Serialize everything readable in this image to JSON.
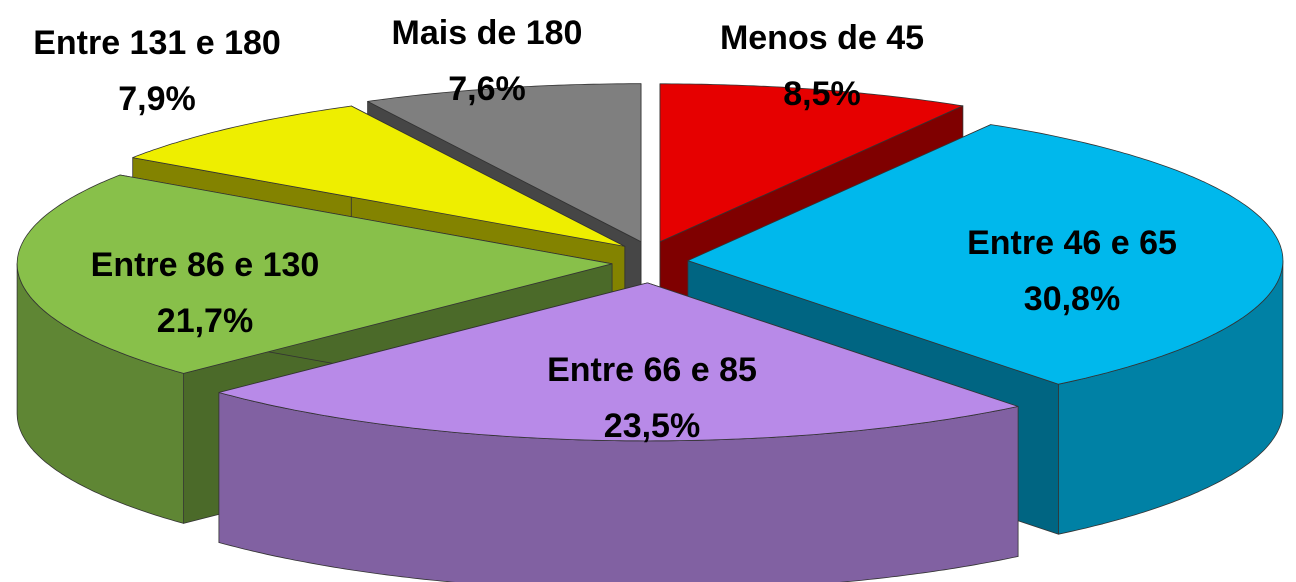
{
  "chart_data": {
    "type": "pie",
    "style": "3d-exploded",
    "categories": [
      "Menos de 45",
      "Entre 46 e 65",
      "Entre 66 e 85",
      "Entre 86 e 130",
      "Entre 131 e 180",
      "Mais de 180"
    ],
    "values": [
      8.5,
      30.8,
      23.5,
      21.7,
      7.9,
      7.6
    ],
    "value_labels": [
      "8,5%",
      "30,8%",
      "23,5%",
      "21,7%",
      "7,9%",
      "7,6%"
    ],
    "colors": [
      "#e60000",
      "#00b8ec",
      "#b88ae8",
      "#88c04a",
      "#eeee00",
      "#7f7f7f"
    ]
  }
}
